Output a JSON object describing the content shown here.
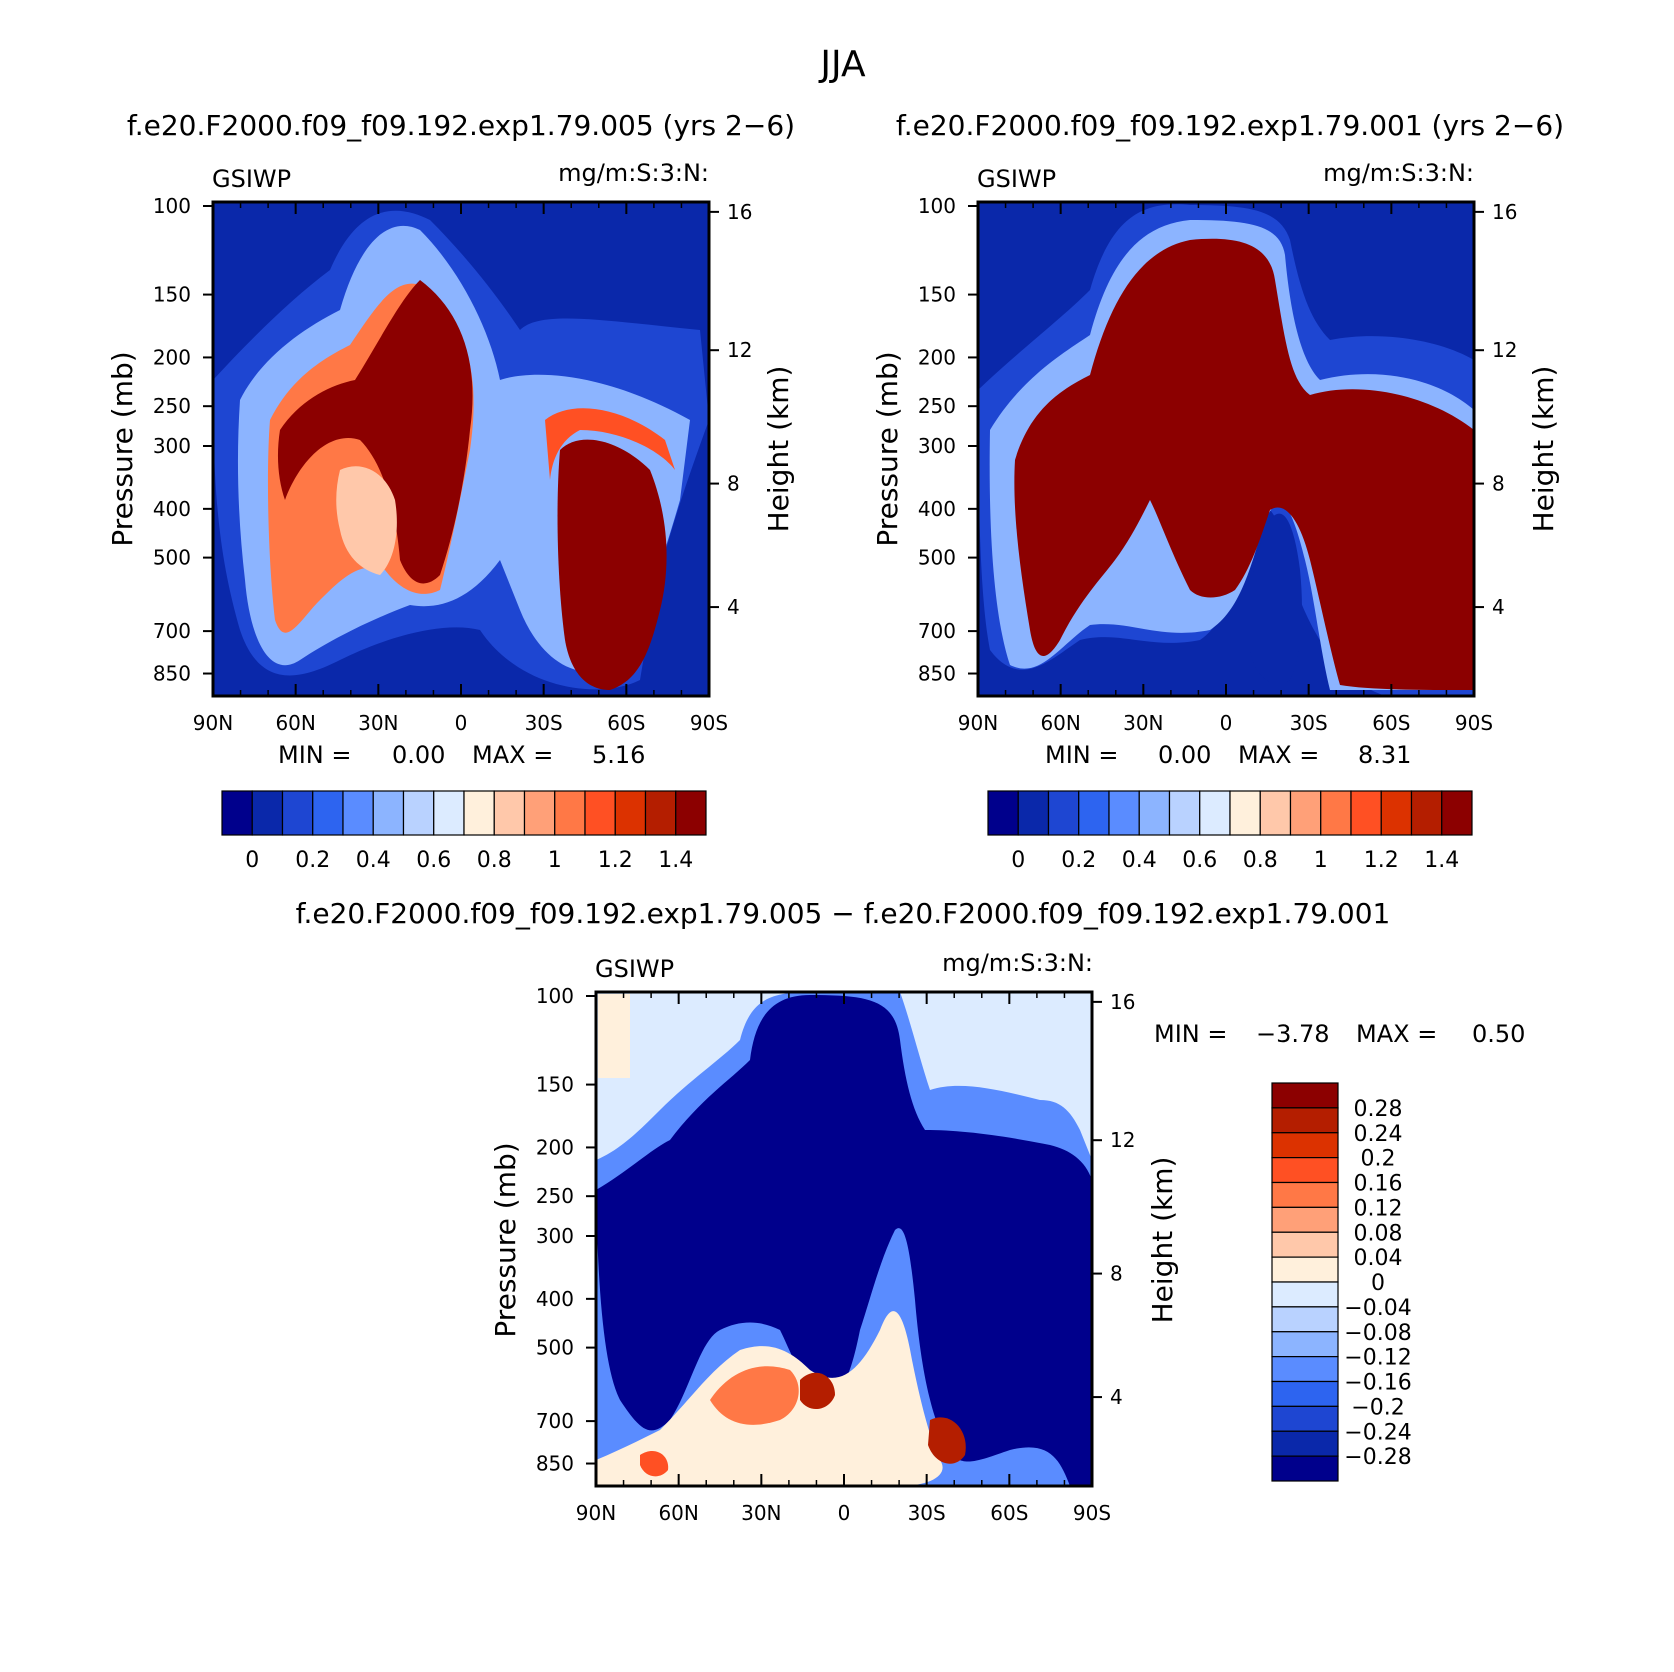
{
  "figure": {
    "title": "JJA"
  },
  "chart_data": [
    {
      "type": "heatmap",
      "id": "p1",
      "title": "f.e20.F2000.f09_f09.192.exp1.79.005 (yrs 2−6)",
      "left_label": "GSIWP",
      "right_label": "mg/m:S:3:N:",
      "ylabel": "Pressure (mb)",
      "y2label": "Height (km)",
      "x_ticks": [
        "90N",
        "60N",
        "30N",
        "0",
        "30S",
        "60S",
        "90S"
      ],
      "y_ticks": [
        "100",
        "150",
        "200",
        "250",
        "300",
        "400",
        "500",
        "700",
        "850"
      ],
      "y2_ticks": [
        "16",
        "12",
        "8",
        "4"
      ],
      "stats": {
        "min_label": "MIN =",
        "min": "0.00",
        "max_label": "MAX =",
        "max": "5.16"
      },
      "colorbar": {
        "orientation": "horizontal",
        "tick_labels": [
          "0",
          "0.2",
          "0.4",
          "0.6",
          "0.8",
          "1",
          "1.2",
          "1.4"
        ],
        "colors": [
          "#00008c",
          "#0a28aa",
          "#1e46d2",
          "#2d64f0",
          "#5a8cff",
          "#8cb4ff",
          "#b9d2ff",
          "#dcebff",
          "#fff0dc",
          "#ffc8aa",
          "#ffa078",
          "#ff7846",
          "#ff5023",
          "#dc3200",
          "#b41e00",
          "#8c0000"
        ]
      }
    },
    {
      "type": "heatmap",
      "id": "p2",
      "title": "f.e20.F2000.f09_f09.192.exp1.79.001 (yrs 2−6)",
      "left_label": "GSIWP",
      "right_label": "mg/m:S:3:N:",
      "ylabel": "Pressure (mb)",
      "y2label": "Height (km)",
      "x_ticks": [
        "90N",
        "60N",
        "30N",
        "0",
        "30S",
        "60S",
        "90S"
      ],
      "y_ticks": [
        "100",
        "150",
        "200",
        "250",
        "300",
        "400",
        "500",
        "700",
        "850"
      ],
      "y2_ticks": [
        "16",
        "12",
        "8",
        "4"
      ],
      "stats": {
        "min_label": "MIN =",
        "min": "0.00",
        "max_label": "MAX =",
        "max": "8.31"
      },
      "colorbar": {
        "orientation": "horizontal",
        "tick_labels": [
          "0",
          "0.2",
          "0.4",
          "0.6",
          "0.8",
          "1",
          "1.2",
          "1.4"
        ],
        "colors": [
          "#00008c",
          "#0a28aa",
          "#1e46d2",
          "#2d64f0",
          "#5a8cff",
          "#8cb4ff",
          "#b9d2ff",
          "#dcebff",
          "#fff0dc",
          "#ffc8aa",
          "#ffa078",
          "#ff7846",
          "#ff5023",
          "#dc3200",
          "#b41e00",
          "#8c0000"
        ]
      }
    },
    {
      "type": "heatmap",
      "id": "p3",
      "title": "f.e20.F2000.f09_f09.192.exp1.79.005 − f.e20.F2000.f09_f09.192.exp1.79.001",
      "left_label": "GSIWP",
      "right_label": "mg/m:S:3:N:",
      "ylabel": "Pressure (mb)",
      "y2label": "Height (km)",
      "x_ticks": [
        "90N",
        "60N",
        "30N",
        "0",
        "30S",
        "60S",
        "90S"
      ],
      "y_ticks": [
        "100",
        "150",
        "200",
        "250",
        "300",
        "400",
        "500",
        "700",
        "850"
      ],
      "y2_ticks": [
        "16",
        "12",
        "8",
        "4"
      ],
      "stats": {
        "min_label": "MIN =",
        "min": "−3.78",
        "max_label": "MAX =",
        "max": "0.50"
      },
      "colorbar": {
        "orientation": "vertical",
        "tick_labels": [
          "0.28",
          "0.24",
          "0.2",
          "0.16",
          "0.12",
          "0.08",
          "0.04",
          "0",
          "−0.04",
          "−0.08",
          "−0.12",
          "−0.16",
          "−0.2",
          "−0.24",
          "−0.28"
        ],
        "colors": [
          "#8c0000",
          "#b41e00",
          "#dc3200",
          "#ff5023",
          "#ff7846",
          "#ffa078",
          "#ffc8aa",
          "#fff0dc",
          "#dcebff",
          "#b9d2ff",
          "#8cb4ff",
          "#5a8cff",
          "#2d64f0",
          "#1e46d2",
          "#0a28aa",
          "#00008c"
        ]
      }
    }
  ]
}
